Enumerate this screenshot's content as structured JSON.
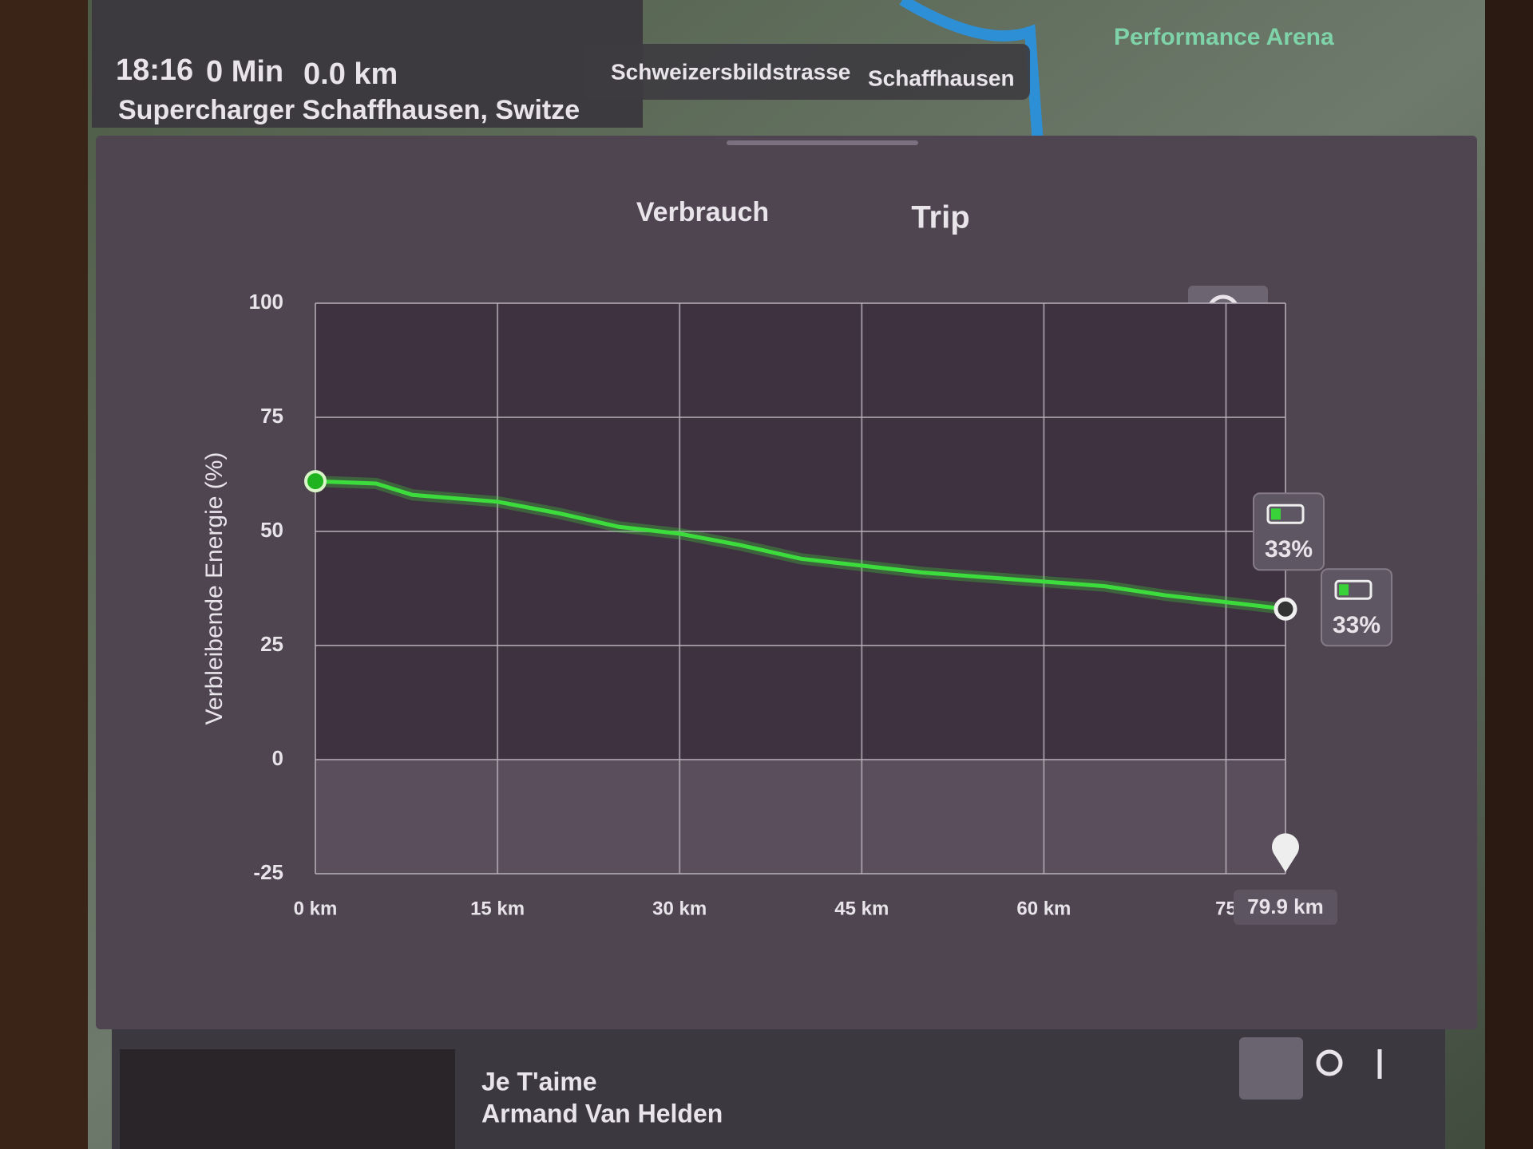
{
  "nav": {
    "time": "18:16",
    "duration": "0 Min",
    "distance": "0.0 km",
    "destination": "Supercharger Schaffhausen, Switze",
    "street": "Schweizersbildstrasse",
    "city": "Schaffhausen",
    "poi": "Performance Arena"
  },
  "tabs": [
    "Verbrauch",
    "Trip"
  ],
  "chart_data": {
    "type": "line",
    "y_label": "Verbleibende Energie (%)",
    "x": [
      0,
      5,
      8,
      15,
      20,
      25,
      30,
      35,
      40,
      45,
      50,
      55,
      60,
      65,
      70,
      75,
      79.9
    ],
    "series": [
      {
        "color": "#3ddc3d",
        "values": [
          61,
          60.5,
          58,
          56.5,
          54,
          51,
          49.5,
          47,
          44,
          42.5,
          41,
          40,
          39,
          38,
          36,
          34.5,
          33
        ]
      }
    ],
    "xlim": [
      0,
      79.9
    ],
    "ylim": [
      -25,
      100
    ],
    "xticks": [
      {
        "value": 0,
        "label": "0 km"
      },
      {
        "value": 15,
        "label": "15 km"
      },
      {
        "value": 30,
        "label": "30 km"
      },
      {
        "value": 45,
        "label": "45 km"
      },
      {
        "value": 60,
        "label": "60 km"
      },
      75
    ],
    "yticks": [
      100,
      75,
      50,
      25,
      0,
      -25
    ],
    "grid": true,
    "end_marker": {
      "value": 79.9,
      "label": "79.9 km"
    },
    "annotations": [
      {
        "label": "33%",
        "value": 33
      },
      {
        "label": "33%",
        "value": 33
      }
    ]
  },
  "media": {
    "title": "Je T'aime",
    "artist": "Armand Van Helden"
  }
}
